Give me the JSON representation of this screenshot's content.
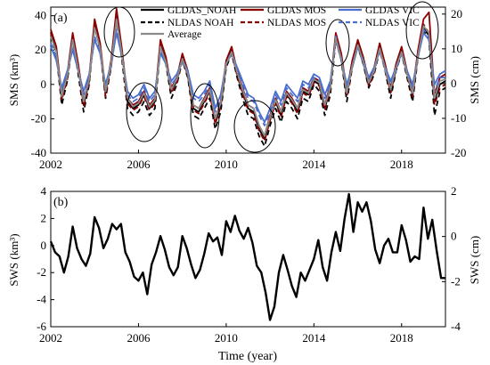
{
  "figure": {
    "xlabel": "Time (year)"
  },
  "chart_data": [
    {
      "type": "line",
      "panel_label": "(a)",
      "ylabel": "SMS (km³)",
      "ylabel_right": "SMS (cm)",
      "xlim": [
        2002,
        2020
      ],
      "ylim": [
        -40,
        45
      ],
      "ylim_right": [
        -20,
        22
      ],
      "xticks": [
        2002,
        2006,
        2010,
        2014,
        2018
      ],
      "yticks": [
        -40,
        -20,
        0,
        20,
        40
      ],
      "yticks_right": [
        -20,
        -10,
        0,
        10,
        20
      ],
      "grid": false,
      "legend_position": "top",
      "x": [
        2002.0,
        2002.25,
        2002.5,
        2002.75,
        2003.0,
        2003.25,
        2003.5,
        2003.75,
        2004.0,
        2004.25,
        2004.5,
        2004.75,
        2005.0,
        2005.25,
        2005.5,
        2005.75,
        2006.0,
        2006.25,
        2006.5,
        2006.75,
        2007.0,
        2007.25,
        2007.5,
        2007.75,
        2008.0,
        2008.25,
        2008.5,
        2008.75,
        2009.0,
        2009.25,
        2009.5,
        2009.75,
        2010.0,
        2010.25,
        2010.5,
        2010.75,
        2011.0,
        2011.25,
        2011.5,
        2011.75,
        2012.0,
        2012.25,
        2012.5,
        2012.75,
        2013.0,
        2013.25,
        2013.5,
        2013.75,
        2014.0,
        2014.25,
        2014.5,
        2014.75,
        2015.0,
        2015.25,
        2015.5,
        2015.75,
        2016.0,
        2016.25,
        2016.5,
        2016.75,
        2017.0,
        2017.25,
        2017.5,
        2017.75,
        2018.0,
        2018.25,
        2018.5,
        2018.75,
        2019.0,
        2019.25,
        2019.5,
        2019.75,
        2020.0
      ],
      "series": [
        {
          "name": "GLDAS_NOAH",
          "color": "#000000",
          "dash": "solid",
          "values": [
            30,
            20,
            -8,
            5,
            28,
            10,
            -12,
            2,
            36,
            22,
            -5,
            12,
            40,
            18,
            -10,
            -14,
            -12,
            -6,
            -14,
            -10,
            24,
            14,
            -4,
            2,
            16,
            6,
            -14,
            -16,
            -10,
            -4,
            -22,
            -12,
            12,
            20,
            6,
            -4,
            -14,
            -16,
            -26,
            -32,
            -20,
            -10,
            -18,
            -6,
            -10,
            -16,
            -4,
            -6,
            2,
            0,
            -14,
            -2,
            28,
            16,
            -6,
            12,
            24,
            14,
            0,
            8,
            22,
            10,
            -4,
            10,
            20,
            6,
            -6,
            18,
            34,
            28,
            -10,
            0,
            2
          ]
        },
        {
          "name": "NLDAS NOAH",
          "color": "#000000",
          "dash": "6,4",
          "values": [
            28,
            18,
            -12,
            2,
            26,
            6,
            -16,
            0,
            34,
            20,
            -8,
            10,
            38,
            14,
            -14,
            -18,
            -16,
            -10,
            -18,
            -14,
            22,
            12,
            -8,
            0,
            14,
            4,
            -18,
            -20,
            -14,
            -8,
            -26,
            -16,
            10,
            18,
            4,
            -8,
            -18,
            -20,
            -30,
            -36,
            -24,
            -14,
            -22,
            -10,
            -14,
            -20,
            -8,
            -10,
            0,
            -4,
            -18,
            -6,
            26,
            14,
            -10,
            10,
            22,
            12,
            -2,
            6,
            20,
            8,
            -8,
            8,
            18,
            4,
            -10,
            16,
            32,
            26,
            -18,
            -4,
            -2
          ]
        },
        {
          "name": "GLDAS MOS",
          "color": "#8b0000",
          "dash": "solid",
          "values": [
            32,
            22,
            -6,
            6,
            30,
            12,
            -10,
            4,
            38,
            24,
            -4,
            14,
            44,
            20,
            -8,
            -12,
            -10,
            -4,
            -12,
            -8,
            26,
            16,
            -2,
            4,
            18,
            8,
            -12,
            -14,
            -8,
            -2,
            -20,
            -10,
            14,
            22,
            8,
            -2,
            -12,
            -14,
            -24,
            -30,
            -18,
            -8,
            -16,
            -4,
            -8,
            -14,
            -2,
            -4,
            4,
            2,
            -12,
            0,
            30,
            18,
            -4,
            14,
            26,
            16,
            2,
            10,
            24,
            12,
            -2,
            12,
            22,
            8,
            -4,
            20,
            38,
            42,
            -6,
            4,
            6
          ]
        },
        {
          "name": "NLDAS MOS",
          "color": "#8b0000",
          "dash": "6,4",
          "values": [
            30,
            20,
            -9,
            3,
            28,
            9,
            -13,
            1,
            35,
            21,
            -7,
            11,
            41,
            17,
            -11,
            -15,
            -13,
            -7,
            -15,
            -11,
            23,
            13,
            -5,
            1,
            15,
            5,
            -15,
            -17,
            -11,
            -5,
            -23,
            -13,
            11,
            19,
            5,
            -5,
            -15,
            -17,
            -27,
            -33,
            -21,
            -11,
            -19,
            -7,
            -11,
            -17,
            -5,
            -7,
            1,
            -1,
            -15,
            -3,
            27,
            15,
            -7,
            11,
            23,
            13,
            -1,
            7,
            21,
            9,
            -5,
            9,
            19,
            5,
            -7,
            17,
            35,
            30,
            -12,
            -2,
            0
          ]
        },
        {
          "name": "GLDAS VIC",
          "color": "#4a6fd0",
          "dash": "solid",
          "values": [
            22,
            14,
            -2,
            8,
            20,
            8,
            -4,
            6,
            26,
            18,
            0,
            12,
            30,
            16,
            -4,
            -8,
            -6,
            0,
            -8,
            -4,
            18,
            12,
            2,
            6,
            14,
            8,
            -6,
            -8,
            -4,
            2,
            -14,
            -6,
            12,
            18,
            10,
            2,
            -6,
            -8,
            -16,
            -22,
            -14,
            -4,
            -10,
            0,
            -4,
            -8,
            2,
            0,
            6,
            4,
            -6,
            2,
            26,
            14,
            0,
            10,
            22,
            14,
            4,
            10,
            20,
            10,
            2,
            10,
            18,
            8,
            0,
            16,
            30,
            26,
            0,
            6,
            8
          ]
        },
        {
          "name": "NLDAS VIC",
          "color": "#4a6fd0",
          "dash": "6,4",
          "values": [
            24,
            16,
            -4,
            6,
            22,
            8,
            -6,
            4,
            28,
            18,
            -2,
            10,
            32,
            16,
            -6,
            -10,
            -8,
            -2,
            -10,
            -6,
            20,
            12,
            0,
            4,
            14,
            6,
            -8,
            -10,
            -6,
            0,
            -16,
            -8,
            12,
            18,
            8,
            0,
            -8,
            -10,
            -18,
            -24,
            -16,
            -6,
            -12,
            -2,
            -6,
            -10,
            0,
            -2,
            4,
            2,
            -8,
            0,
            28,
            14,
            -2,
            10,
            22,
            12,
            2,
            8,
            20,
            8,
            0,
            8,
            18,
            6,
            -2,
            16,
            32,
            28,
            -4,
            4,
            4
          ]
        },
        {
          "name": "Average",
          "color": "#8a8a8a",
          "dash": "solid",
          "values": [
            28,
            19,
            -7,
            5,
            26,
            9,
            -10,
            3,
            33,
            21,
            -4,
            12,
            38,
            17,
            -8,
            -13,
            -11,
            -5,
            -13,
            -9,
            22,
            13,
            -3,
            3,
            15,
            6,
            -12,
            -14,
            -9,
            -3,
            -20,
            -11,
            12,
            19,
            7,
            -3,
            -12,
            -14,
            -24,
            -30,
            -19,
            -9,
            -16,
            -5,
            -9,
            -14,
            -3,
            -5,
            3,
            1,
            -12,
            -2,
            27,
            15,
            -5,
            11,
            23,
            13,
            1,
            8,
            21,
            9,
            -3,
            10,
            19,
            6,
            -5,
            17,
            34,
            30,
            -8,
            2,
            3
          ]
        }
      ],
      "annotations": [
        "ellipse-2005",
        "ellipse-2006.8",
        "ellipse-2009.3",
        "ellipse-2011.8",
        "ellipse-2015.4",
        "ellipse-2019.2"
      ]
    },
    {
      "type": "line",
      "panel_label": "(b)",
      "ylabel": "SWS (km³)",
      "ylabel_right": "SWS (cm)",
      "xlim": [
        2002,
        2020
      ],
      "ylim": [
        -6,
        4
      ],
      "ylim_right": [
        -4,
        2
      ],
      "xticks": [
        2002,
        2006,
        2010,
        2014,
        2018
      ],
      "yticks": [
        -6,
        -4,
        -2,
        0,
        2,
        4
      ],
      "yticks_right": [
        -4,
        -2,
        0,
        2
      ],
      "grid": false,
      "series": [
        {
          "name": "",
          "color": "#000000",
          "dash": "solid",
          "x": [
            2002.0,
            2002.2,
            2002.4,
            2002.6,
            2002.8,
            2003.0,
            2003.2,
            2003.4,
            2003.6,
            2003.8,
            2004.0,
            2004.2,
            2004.4,
            2004.6,
            2004.8,
            2005.0,
            2005.2,
            2005.4,
            2005.6,
            2005.8,
            2006.0,
            2006.2,
            2006.4,
            2006.6,
            2006.8,
            2007.0,
            2007.2,
            2007.4,
            2007.6,
            2007.8,
            2008.0,
            2008.2,
            2008.4,
            2008.6,
            2008.8,
            2009.0,
            2009.2,
            2009.4,
            2009.6,
            2009.8,
            2010.0,
            2010.2,
            2010.4,
            2010.6,
            2010.8,
            2011.0,
            2011.2,
            2011.4,
            2011.6,
            2011.8,
            2012.0,
            2012.2,
            2012.4,
            2012.6,
            2012.8,
            2013.0,
            2013.2,
            2013.4,
            2013.6,
            2013.8,
            2014.0,
            2014.2,
            2014.4,
            2014.6,
            2014.8,
            2015.0,
            2015.2,
            2015.4,
            2015.6,
            2015.8,
            2016.0,
            2016.2,
            2016.4,
            2016.6,
            2016.8,
            2017.0,
            2017.2,
            2017.4,
            2017.6,
            2017.8,
            2018.0,
            2018.2,
            2018.4,
            2018.6,
            2018.8,
            2019.0,
            2019.2,
            2019.4,
            2019.6,
            2019.8,
            2020.0
          ],
          "values": [
            0.3,
            -0.5,
            -0.8,
            -2.0,
            -0.8,
            1.4,
            -0.2,
            -1.0,
            -1.5,
            -0.6,
            2.1,
            1.3,
            -0.2,
            0.5,
            1.6,
            1.2,
            1.6,
            -0.5,
            -1.2,
            -2.3,
            -2.6,
            -2.0,
            -3.6,
            -1.4,
            -0.5,
            0.7,
            -0.3,
            -1.6,
            -2.2,
            -1.6,
            0.7,
            -0.2,
            -1.4,
            -2.4,
            -1.8,
            -0.6,
            0.9,
            0.3,
            0.6,
            -0.7,
            1.8,
            1.0,
            2.2,
            1.1,
            0.5,
            1.3,
            0.2,
            -1.5,
            -2.0,
            -3.5,
            -5.5,
            -4.5,
            -2.0,
            -0.7,
            -1.8,
            -3.0,
            -3.8,
            -2.0,
            -2.6,
            -1.8,
            -1.0,
            0.4,
            -1.6,
            -2.6,
            -0.5,
            1.0,
            -0.4,
            2.0,
            3.8,
            1.0,
            3.2,
            2.5,
            3.2,
            1.8,
            -0.3,
            -1.3,
            0.0,
            0.5,
            -0.5,
            -0.5,
            1.5,
            0.4,
            -1.2,
            -0.8,
            -1.0,
            2.8,
            0.5,
            1.9,
            -0.4,
            -2.4,
            -2.4
          ]
        }
      ]
    }
  ]
}
